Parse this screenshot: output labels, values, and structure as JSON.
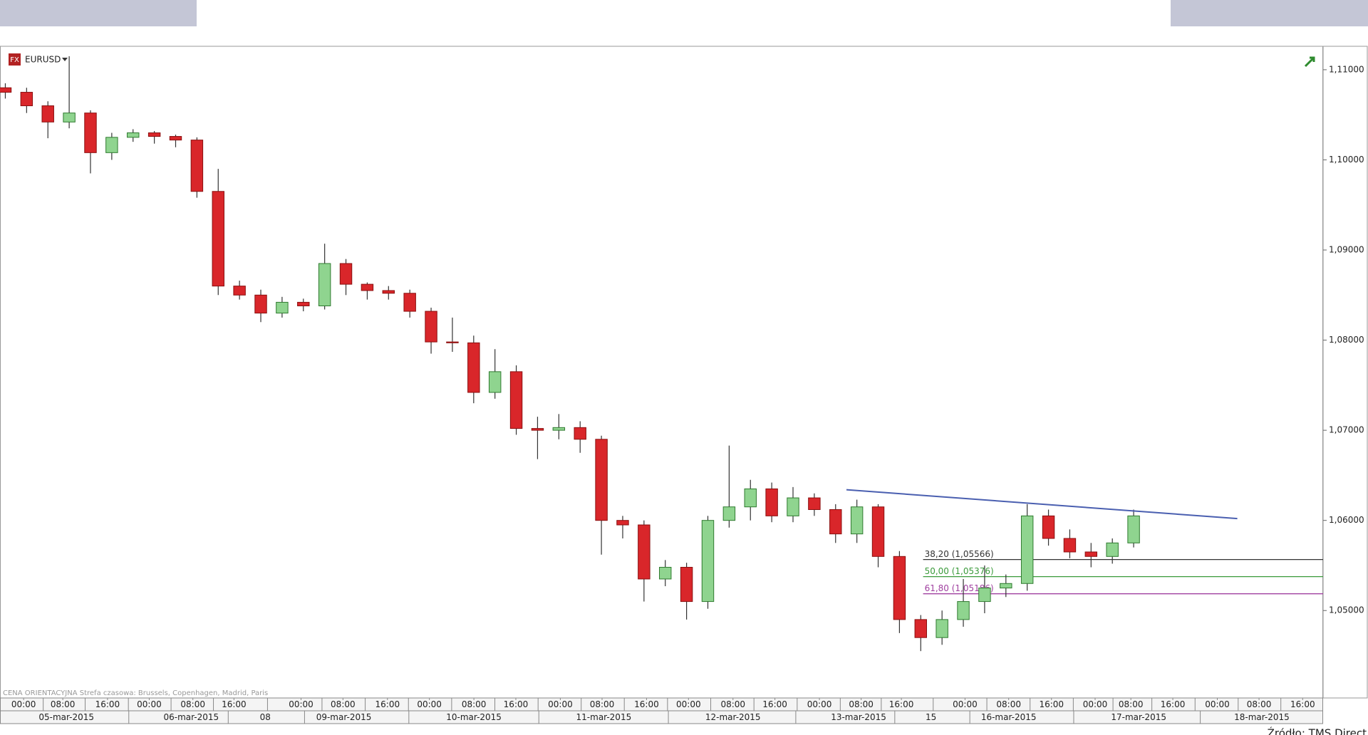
{
  "chart_data": {
    "type": "candlestick",
    "symbol": "EURUSD",
    "badge": "FX",
    "note": "CENA ORIENTACYJNA   Strefa czasowa: Brussels, Copenhagen, Madrid, Paris",
    "source": "Źródło: TMS Direct",
    "up_color": "#8fd48f",
    "down_color": "#d9262a",
    "x": [
      0,
      1,
      2,
      3,
      4,
      5,
      6,
      7,
      8,
      9,
      10,
      11,
      12,
      13,
      14,
      15,
      16,
      17,
      18,
      19,
      20,
      21,
      22,
      23,
      24,
      25,
      26,
      27,
      28,
      29,
      30,
      31,
      32,
      33,
      34,
      35,
      36,
      37,
      38,
      39,
      40,
      41,
      42,
      43,
      44,
      45,
      46,
      47,
      48,
      49,
      50,
      51,
      52,
      53
    ],
    "open": [
      1.108,
      1.1075,
      1.106,
      1.1042,
      1.1052,
      1.1008,
      1.1025,
      1.103,
      1.1026,
      1.1022,
      1.0965,
      1.086,
      1.085,
      1.083,
      1.0842,
      1.0838,
      1.0885,
      1.0862,
      1.0855,
      1.0852,
      1.0832,
      1.0798,
      1.0797,
      1.0742,
      1.0765,
      1.0702,
      1.07,
      1.0703,
      1.069,
      1.06,
      1.0595,
      1.0535,
      1.0548,
      1.051,
      1.06,
      1.0615,
      1.0635,
      1.0605,
      1.0625,
      1.0612,
      1.0585,
      1.0615,
      1.056,
      1.049,
      1.047,
      1.049,
      1.051,
      1.0525,
      1.053,
      1.0605,
      1.058,
      1.0565,
      1.056,
      1.0575
    ],
    "high": [
      1.1085,
      1.108,
      1.1065,
      1.1115,
      1.1055,
      1.103,
      1.1034,
      1.1032,
      1.1028,
      1.1025,
      1.099,
      1.0866,
      1.0856,
      1.0848,
      1.0846,
      1.0907,
      1.089,
      1.0864,
      1.086,
      1.0856,
      1.0836,
      1.0825,
      1.0805,
      1.079,
      1.0772,
      1.0715,
      1.0718,
      1.071,
      1.0694,
      1.0605,
      1.06,
      1.0556,
      1.0553,
      1.0605,
      1.0683,
      1.0645,
      1.0642,
      1.0637,
      1.063,
      1.0618,
      1.0623,
      1.0618,
      1.0566,
      1.0495,
      1.05,
      1.0535,
      1.055,
      1.054,
      1.0618,
      1.0612,
      1.059,
      1.0575,
      1.058,
      1.0612
    ],
    "low": [
      1.1068,
      1.1052,
      1.1024,
      1.1035,
      1.0985,
      1.1,
      1.102,
      1.1018,
      1.1014,
      1.0958,
      1.085,
      1.0845,
      1.082,
      1.0825,
      1.0832,
      1.0834,
      1.085,
      1.0845,
      1.0845,
      1.0825,
      1.0785,
      1.0787,
      1.073,
      1.0735,
      1.0695,
      1.0668,
      1.069,
      1.0675,
      1.0562,
      1.058,
      1.051,
      1.0527,
      1.049,
      1.0502,
      1.0592,
      1.06,
      1.0598,
      1.0598,
      1.0605,
      1.0575,
      1.0575,
      1.0548,
      1.0475,
      1.0455,
      1.0462,
      1.0482,
      1.0497,
      1.0515,
      1.0522,
      1.0572,
      1.0558,
      1.0548,
      1.0552,
      1.057
    ],
    "close": [
      1.1075,
      1.106,
      1.1042,
      1.1052,
      1.1008,
      1.1025,
      1.103,
      1.1026,
      1.1022,
      1.0965,
      1.086,
      1.085,
      1.083,
      1.0842,
      1.0838,
      1.0885,
      1.0862,
      1.0855,
      1.0852,
      1.0832,
      1.0798,
      1.0797,
      1.0742,
      1.0765,
      1.0702,
      1.07,
      1.0703,
      1.069,
      1.06,
      1.0595,
      1.0535,
      1.0548,
      1.051,
      1.06,
      1.0615,
      1.0635,
      1.0605,
      1.0625,
      1.0612,
      1.0585,
      1.0615,
      1.056,
      1.049,
      1.047,
      1.049,
      1.051,
      1.0525,
      1.053,
      1.0605,
      1.058,
      1.0565,
      1.056,
      1.0575,
      1.0605
    ],
    "xlim": [
      -0.25,
      61.9
    ],
    "ylim": [
      1.0403,
      1.1126
    ],
    "yticks": [
      {
        "value": 1.05,
        "label": "1,05000"
      },
      {
        "value": 1.06,
        "label": "1,06000"
      },
      {
        "value": 1.07,
        "label": "1,07000"
      },
      {
        "value": 1.08,
        "label": "1,08000"
      },
      {
        "value": 1.09,
        "label": "1,09000"
      },
      {
        "value": 1.1,
        "label": "1,10000"
      },
      {
        "value": 1.11,
        "label": "1,11000"
      }
    ],
    "xticks": [
      {
        "value": 0.86,
        "label": "00:00"
      },
      {
        "value": 2.7,
        "label": "08:00"
      },
      {
        "value": 4.8,
        "label": "16:00"
      },
      {
        "value": 6.76,
        "label": "00:00"
      },
      {
        "value": 8.81,
        "label": "08:00"
      },
      {
        "value": 10.74,
        "label": "16:00"
      },
      {
        "value": 13.89,
        "label": "00:00"
      },
      {
        "value": 15.86,
        "label": "08:00"
      },
      {
        "value": 17.95,
        "label": "16:00"
      },
      {
        "value": 19.92,
        "label": "00:00"
      },
      {
        "value": 22.01,
        "label": "08:00"
      },
      {
        "value": 23.98,
        "label": "16:00"
      },
      {
        "value": 26.07,
        "label": "00:00"
      },
      {
        "value": 28.03,
        "label": "08:00"
      },
      {
        "value": 30.12,
        "label": "16:00"
      },
      {
        "value": 32.09,
        "label": "00:00"
      },
      {
        "value": 34.18,
        "label": "08:00"
      },
      {
        "value": 36.15,
        "label": "16:00"
      },
      {
        "value": 38.24,
        "label": "00:00"
      },
      {
        "value": 40.2,
        "label": "08:00"
      },
      {
        "value": 42.09,
        "label": "16:00"
      },
      {
        "value": 45.08,
        "label": "00:00"
      },
      {
        "value": 47.13,
        "label": "08:00"
      },
      {
        "value": 49.14,
        "label": "16:00"
      },
      {
        "value": 51.19,
        "label": "00:00"
      },
      {
        "value": 52.87,
        "label": "08:00"
      },
      {
        "value": 54.84,
        "label": "16:00"
      },
      {
        "value": 56.93,
        "label": "00:00"
      },
      {
        "value": 58.89,
        "label": "08:00"
      },
      {
        "value": 60.94,
        "label": "16:00"
      }
    ],
    "date_labels": [
      {
        "value": 2.87,
        "label": "05-mar-2015"
      },
      {
        "value": 8.73,
        "label": "06-mar-2015"
      },
      {
        "value": 12.21,
        "label": "08"
      },
      {
        "value": 15.9,
        "label": "09-mar-2015"
      },
      {
        "value": 22.01,
        "label": "10-mar-2015"
      },
      {
        "value": 28.11,
        "label": "11-mar-2015"
      },
      {
        "value": 34.18,
        "label": "12-mar-2015"
      },
      {
        "value": 40.08,
        "label": "13-mar-2015"
      },
      {
        "value": 43.48,
        "label": "15"
      },
      {
        "value": 47.13,
        "label": "16-mar-2015"
      },
      {
        "value": 53.24,
        "label": "17-mar-2015"
      },
      {
        "value": 59.02,
        "label": "18-mar-2015"
      }
    ],
    "trendline": {
      "x": [
        39.51,
        57.87
      ],
      "y": [
        1.0634,
        1.0602
      ],
      "color": "#4a5fb0"
    },
    "fib_start": 43.11,
    "fib_levels": [
      {
        "label": "38,20 (1,05566)",
        "value": 1.05566,
        "color": "#333333"
      },
      {
        "label": "50,00 (1,05376)",
        "value": 1.05376,
        "color": "#3a9a3a"
      },
      {
        "label": "61,80 (1,05186)",
        "value": 1.05186,
        "color": "#a040a0"
      }
    ]
  }
}
